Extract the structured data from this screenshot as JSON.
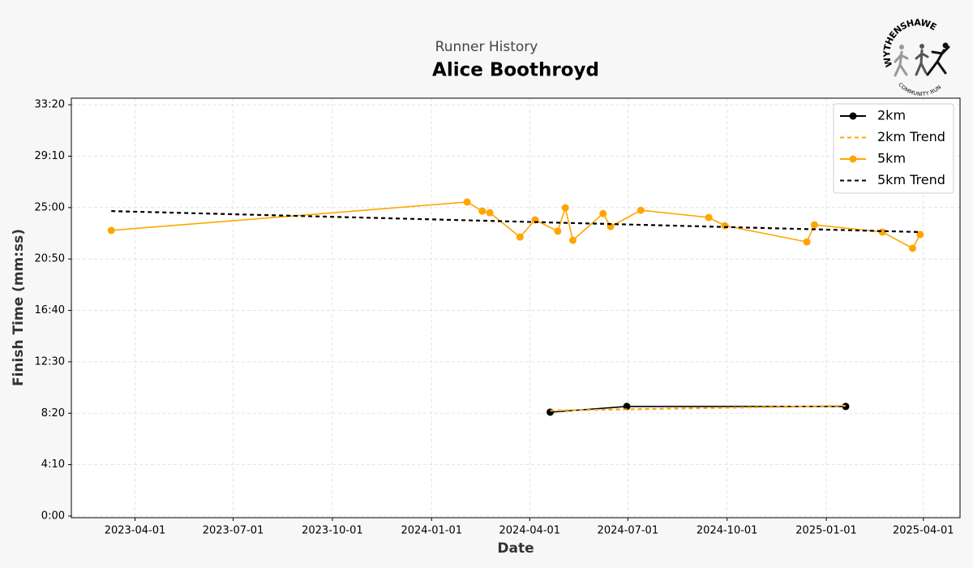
{
  "chart_data": {
    "type": "line",
    "subtitle": "Runner History",
    "title": "Alice Boothroyd",
    "x_label": "Date",
    "y_label": "Finish Time (mm:ss)",
    "xlim": [
      "2023-02-01",
      "2025-05-05"
    ],
    "xticks": [
      "2023-04-01",
      "2023-07-01",
      "2023-10-01",
      "2024-01-01",
      "2024-04-01",
      "2024-07-01",
      "2024-10-01",
      "2025-01-01",
      "2025-04-01"
    ],
    "ylim": [
      -8,
      2032
    ],
    "yticks": [
      {
        "value": 0,
        "label": "0:00"
      },
      {
        "value": 250,
        "label": "4:10"
      },
      {
        "value": 500,
        "label": "8:20"
      },
      {
        "value": 750,
        "label": "12:30"
      },
      {
        "value": 1000,
        "label": "16:40"
      },
      {
        "value": 1250,
        "label": "20:50"
      },
      {
        "value": 1500,
        "label": "25:00"
      },
      {
        "value": 1750,
        "label": "29:10"
      },
      {
        "value": 2000,
        "label": "33:20"
      }
    ],
    "grid": true,
    "legend": "upper right",
    "series": [
      {
        "name": "2km",
        "color": "#000000",
        "linestyle": "solid",
        "marker": "o",
        "x": [
          "2024-04-20",
          "2024-06-30",
          "2025-01-19"
        ],
        "values": [
          505,
          533,
          533
        ]
      },
      {
        "name": "2km Trend",
        "color": "#ffa500",
        "linestyle": "dashed",
        "marker": "none",
        "x": [
          "2024-04-20",
          "2025-01-19"
        ],
        "values": [
          513,
          536
        ]
      },
      {
        "name": "5km",
        "color": "#ffa500",
        "linestyle": "solid",
        "marker": "o",
        "x": [
          "2023-03-10",
          "2024-02-03",
          "2024-02-17",
          "2024-02-24",
          "2024-03-23",
          "2024-04-06",
          "2024-04-27",
          "2024-05-04",
          "2024-05-11",
          "2024-06-08",
          "2024-06-15",
          "2024-07-13",
          "2024-09-14",
          "2024-09-29",
          "2024-12-14",
          "2024-12-21",
          "2025-02-22",
          "2025-03-22",
          "2025-03-29"
        ],
        "values": [
          1389,
          1527,
          1483,
          1475,
          1357,
          1440,
          1385,
          1499,
          1341,
          1471,
          1408,
          1487,
          1452,
          1412,
          1333,
          1416,
          1381,
          1302,
          1369
        ]
      },
      {
        "name": "5km Trend",
        "color": "#000000",
        "linestyle": "dashed",
        "marker": "none",
        "x": [
          "2023-03-10",
          "2025-03-29"
        ],
        "values": [
          1483,
          1381
        ]
      }
    ]
  },
  "logo": {
    "name": "WYTHENSHAWE",
    "tagline": "COMMUNITY RUN"
  }
}
